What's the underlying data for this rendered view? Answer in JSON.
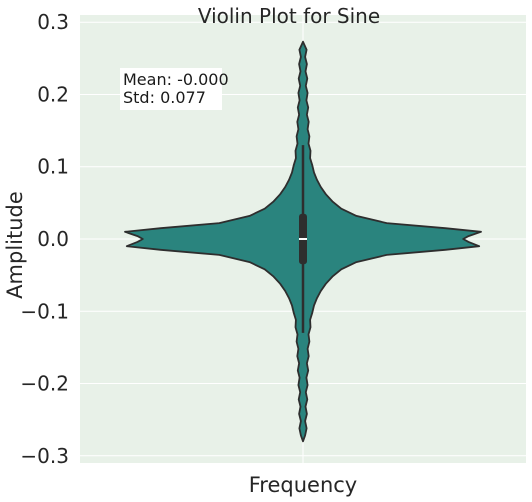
{
  "chart_data": {
    "type": "violin",
    "title": "Violin Plot for Sine",
    "xlabel": "Frequency",
    "ylabel": "Amplitude",
    "ylim": [
      -0.31,
      0.31
    ],
    "yticks": [
      0.3,
      0.2,
      0.1,
      0.0,
      -0.1,
      -0.2,
      -0.3
    ],
    "ytick_labels": [
      "0.3",
      "0.2",
      "0.1",
      "0.0",
      "−0.1",
      "−0.2",
      "−0.3"
    ],
    "grid": true,
    "colors": {
      "background": "#e8f1e8",
      "grid": "#ffffff",
      "violin_fill": "#2a847e",
      "violin_edge": "#2e2e2e",
      "box": "#2e2e2e",
      "median": "#ffffff"
    },
    "annotation": {
      "lines": [
        "Mean: -0.000",
        "Std: 0.077"
      ],
      "position": "top-left"
    },
    "violin": {
      "category": "",
      "median": 0.0,
      "q1": -0.035,
      "q3": 0.035,
      "whisker_low": -0.13,
      "whisker_high": 0.13,
      "min": -0.28,
      "max": 0.273,
      "density_profile": [
        [
          -0.28,
          0.0
        ],
        [
          -0.272,
          0.012
        ],
        [
          -0.262,
          0.02
        ],
        [
          -0.252,
          0.012
        ],
        [
          -0.242,
          0.022
        ],
        [
          -0.232,
          0.014
        ],
        [
          -0.222,
          0.024
        ],
        [
          -0.212,
          0.016
        ],
        [
          -0.202,
          0.026
        ],
        [
          -0.192,
          0.019
        ],
        [
          -0.182,
          0.029
        ],
        [
          -0.172,
          0.022
        ],
        [
          -0.162,
          0.032
        ],
        [
          -0.152,
          0.026
        ],
        [
          -0.142,
          0.036
        ],
        [
          -0.132,
          0.031
        ],
        [
          -0.122,
          0.042
        ],
        [
          -0.112,
          0.04
        ],
        [
          -0.102,
          0.052
        ],
        [
          -0.092,
          0.062
        ],
        [
          -0.082,
          0.078
        ],
        [
          -0.072,
          0.1
        ],
        [
          -0.062,
          0.128
        ],
        [
          -0.052,
          0.165
        ],
        [
          -0.042,
          0.215
        ],
        [
          -0.032,
          0.3
        ],
        [
          -0.022,
          0.47
        ],
        [
          -0.015,
          0.8
        ],
        [
          -0.01,
          0.99
        ],
        [
          -0.004,
          0.93
        ],
        [
          0.0,
          0.9
        ],
        [
          0.004,
          0.93
        ],
        [
          0.01,
          1.0
        ],
        [
          0.015,
          0.8
        ],
        [
          0.022,
          0.47
        ],
        [
          0.032,
          0.3
        ],
        [
          0.042,
          0.215
        ],
        [
          0.052,
          0.165
        ],
        [
          0.062,
          0.128
        ],
        [
          0.072,
          0.1
        ],
        [
          0.082,
          0.078
        ],
        [
          0.092,
          0.062
        ],
        [
          0.102,
          0.052
        ],
        [
          0.112,
          0.04
        ],
        [
          0.122,
          0.042
        ],
        [
          0.132,
          0.031
        ],
        [
          0.142,
          0.036
        ],
        [
          0.152,
          0.026
        ],
        [
          0.162,
          0.032
        ],
        [
          0.172,
          0.022
        ],
        [
          0.182,
          0.029
        ],
        [
          0.192,
          0.019
        ],
        [
          0.202,
          0.026
        ],
        [
          0.212,
          0.016
        ],
        [
          0.222,
          0.024
        ],
        [
          0.232,
          0.014
        ],
        [
          0.242,
          0.022
        ],
        [
          0.252,
          0.012
        ],
        [
          0.262,
          0.02
        ],
        [
          0.273,
          0.0
        ]
      ]
    }
  }
}
